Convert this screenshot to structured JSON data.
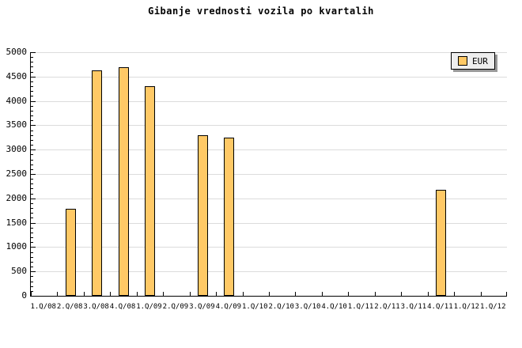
{
  "title": "Gibanje vrednosti vozila po kvartalih",
  "legend": {
    "label": "EUR"
  },
  "colors": {
    "bar_fill": "#FFC966",
    "bar_border": "#000000",
    "grid": "#DCDCDC",
    "axis": "#000000",
    "legend_bg": "#EEEEEE",
    "legend_shadow": "#999999",
    "background": "#FFFFFF"
  },
  "chart_data": {
    "type": "bar",
    "title": "Gibanje vrednosti vozila po kvartalih",
    "categories": [
      "1.Q/08",
      "2.Q/08",
      "3.Q/08",
      "4.Q/08",
      "1.Q/09",
      "2.Q/09",
      "3.Q/09",
      "4.Q/09",
      "1.Q/10",
      "2.Q/10",
      "3.Q/10",
      "4.Q/10",
      "1.Q/11",
      "2.Q/11",
      "3.Q/11",
      "4.Q/11",
      "1.Q/12",
      "1.Q/12"
    ],
    "series": [
      {
        "name": "EUR",
        "values": [
          null,
          1790,
          4620,
          4690,
          4300,
          null,
          3300,
          3240,
          null,
          null,
          null,
          null,
          null,
          null,
          null,
          2180,
          null,
          null
        ]
      }
    ],
    "xlabel": "",
    "ylabel": "",
    "ylim": [
      0,
      5000
    ],
    "y_tick_step": 500,
    "y_minor_tick_step": 100,
    "y_tick_labels": [
      "0",
      "500",
      "1000",
      "1500",
      "2000",
      "2500",
      "3000",
      "3500",
      "4000",
      "4500",
      "5000"
    ],
    "grid": "horizontal-major-only",
    "legend_position": "top-right"
  }
}
